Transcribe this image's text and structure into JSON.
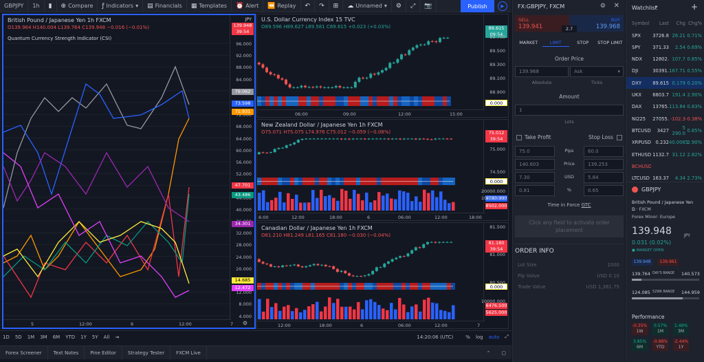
{
  "toolbar": {
    "symbol": "GBPJPY",
    "interval": "1h",
    "compare": "Compare",
    "indicators": "Indicators",
    "financials": "Financials",
    "templates": "Templates",
    "alert": "Alert",
    "replay": "Replay",
    "layout": "Unnamed",
    "publish": "Publish"
  },
  "left_chart": {
    "title": "British Pound / Japanese Yen  1h  FXCM",
    "ohlc": "O139.964 H140.004 L139.764 C139.948 −0.016 (−0.01%)",
    "currency": "JPY",
    "price_tag": "139.948",
    "time_tag": "39:54",
    "indicator": "Quantum Currency Strength Indicator (CSI)",
    "y_labels": [
      "96.000",
      "92.000",
      "88.000",
      "84.000",
      "80.000",
      "76.000",
      "72.000",
      "68.000",
      "64.000",
      "60.000",
      "56.000",
      "52.000",
      "48.000",
      "44.000",
      "40.000",
      "36.000",
      "32.000",
      "28.000",
      "24.000",
      "20.000",
      "16.000",
      "12.000",
      "8.000",
      "4.000"
    ],
    "tags": [
      {
        "text": "79.062",
        "color": "#9598a1"
      },
      {
        "text": "73.598",
        "color": "#2962ff"
      },
      {
        "text": "71.931",
        "color": "#ff9800"
      },
      {
        "text": "47.701",
        "color": "#f23645"
      },
      {
        "text": "43.486",
        "color": "#089981"
      },
      {
        "text": "34.301",
        "color": "#9c27b0"
      },
      {
        "text": "14.685",
        "color": "#ffeb3b"
      },
      {
        "text": "12.472",
        "color": "#e040fb"
      }
    ],
    "x_labels": [
      "5",
      "12:00",
      "6",
      "12:00",
      "7"
    ]
  },
  "dxy_chart": {
    "title": "U.S. Dollar Currency Index  15  TVC",
    "ohlc": "O89.596 H89.627 L89.581 C89.615 +0.023 (+0.03%)",
    "price_tag": "89.615",
    "time_tag": "09:54",
    "y_labels": [
      "89.700",
      "89.500",
      "89.300",
      "89.100",
      "88.900"
    ],
    "osc_tag": "0.000",
    "x_labels": [
      "06:00",
      "09:00",
      "12:00",
      "15:00"
    ]
  },
  "nzd_chart": {
    "title": "New Zealand Dollar / Japanese Yen  1h  FXCM",
    "ohlc": "O75.071 H75.075 L74.976 C75.012 −0.059 (−0.08%)",
    "price_tag": "75.012",
    "time_tag": "39:54",
    "y_labels": [
      "75.000",
      "74.500"
    ],
    "osc_tag": "0.000",
    "vol_labels": [
      "20000.000",
      "10000.000"
    ],
    "vol_tags": [
      {
        "text": "9783.000",
        "color": "#2962ff"
      },
      {
        "text": "8502.000",
        "color": "#f23645"
      }
    ],
    "x_labels": [
      "6:00",
      "12:00",
      "18:00",
      "6",
      "06:00",
      "12:00",
      "18:00"
    ]
  },
  "cad_chart": {
    "title": "Canadian Dollar / Japanese Yen  1h  FXCM",
    "ohlc": "O81.210 H81.249 L81.165 C81.180 −0.030 (−0.04%)",
    "price_tag": "81.180",
    "time_tag": "39:54",
    "y_labels": [
      "81.500",
      "81.000",
      "80.500"
    ],
    "osc_tag": "0.000",
    "vol_labels": [
      "10000.000"
    ],
    "vol_tags": [
      {
        "text": "6476.500",
        "color": "#f23645"
      },
      {
        "text": "5625.000",
        "color": "#f23645"
      }
    ],
    "x_labels": [
      "12:00",
      "18:00",
      "6",
      "06:00",
      "12:00",
      "7"
    ]
  },
  "bottom": {
    "timeframes": [
      "1D",
      "5D",
      "1M",
      "3M",
      "6M",
      "YTD",
      "1Y",
      "5Y",
      "All"
    ],
    "clock": "14:20:06 (UTC)",
    "percent": "%",
    "log": "log",
    "auto": "auto",
    "tabs": [
      "Forex Screener",
      "Text Notes",
      "Pine Editor",
      "Strategy Tester",
      "FXCM Live"
    ]
  },
  "order": {
    "symbol": "FX:GBPJPY, FXCM",
    "sell_label": "SELL",
    "sell_price": "139.941",
    "spread": "2.7",
    "buy_label": "BUY",
    "buy_price": "139.968",
    "tabs": [
      "MARKET",
      "LIMIT",
      "STOP",
      "STOP LIMIT"
    ],
    "order_price_label": "Order Price",
    "price_value": "139.968",
    "ask_placeholder": "Ask",
    "absolute": "Absolute",
    "ticks": "Ticks",
    "amount_label": "Amount",
    "amount_value": "1",
    "lots": "Lots",
    "take_profit": "Take Profit",
    "stop_loss": "Stop Loss",
    "tp_values": [
      "75.0",
      "140.603",
      "7.30",
      "0.81"
    ],
    "row_labels": [
      "Pips",
      "Price",
      "USD",
      "%"
    ],
    "sl_values": [
      "60.0",
      "139.253",
      "5.84",
      "0.65"
    ],
    "tif_label": "Time in Force",
    "tif_value": "GTC",
    "activate": "Click any field to activate order placement",
    "info_title": "ORDER INFO",
    "info_rows": [
      {
        "k": "Lot Size",
        "v": "1000"
      },
      {
        "k": "Pip Value",
        "v": "USD 0.10"
      },
      {
        "k": "Trade Value",
        "v": "USD 1,361.75"
      }
    ]
  },
  "watchlist": {
    "title": "Watchlist",
    "headers": [
      "Symbol",
      "Last",
      "Chg",
      "Chg%"
    ],
    "rows": [
      {
        "s": "SPX",
        "l": "3726.8",
        "c": "26.21",
        "p": "0.71%",
        "dir": "pos"
      },
      {
        "s": "SPY",
        "l": "371.33",
        "c": "2.54",
        "p": "0.69%",
        "dir": "pos"
      },
      {
        "s": "NDX",
        "l": "12802.",
        "c": "107.7",
        "p": "0.85%",
        "dir": "pos"
      },
      {
        "s": "DJI",
        "l": "30391.",
        "c": "167.71",
        "p": "0.55%",
        "dir": "pos"
      },
      {
        "s": "DXY",
        "l": "89.615",
        "c": "0.179",
        "p": "0.20%",
        "dir": "pos"
      },
      {
        "s": "UKX",
        "l": "6803.7",
        "c": "191.4",
        "p": "2.90%",
        "dir": "pos"
      },
      {
        "s": "DAX",
        "l": "13765.",
        "c": "113.84",
        "p": "0.83%",
        "dir": "pos"
      },
      {
        "s": "NI225",
        "l": "27055.",
        "c": "-102.3",
        "p": "-0.38%",
        "dir": "neg"
      },
      {
        "s": "BTCUSD",
        "l": "3427",
        "c": "5 290.0",
        "p": "0.85%",
        "dir": "pos"
      },
      {
        "s": "XRPUSD",
        "l": "0.232",
        "c": "40.0065",
        "p": "2.90%",
        "dir": "pos"
      },
      {
        "s": "ETHUSD",
        "l": "1132.7",
        "c": "31.12",
        "p": "2.82%",
        "dir": "pos"
      },
      {
        "s": "BCHUSD",
        "l": "",
        "c": "",
        "p": "",
        "dir": "neg"
      },
      {
        "s": "LTCUSD",
        "l": "163.37",
        "c": "4.34",
        "p": "2.73%",
        "dir": "pos"
      }
    ],
    "detail_symbol": "GBPJPY",
    "detail_name": "British Pound / Japanese Yen",
    "detail_exchange": "· FXCM",
    "detail_category": "Forex Minor: Europe",
    "detail_price": "139.948",
    "detail_currency": "JPY",
    "detail_change": "0.031 (0.02%)",
    "market_status": "MARKET OPEN",
    "bid": "139.948",
    "ask": "139.961",
    "day_low": "139.764",
    "day_range_label": "DAY'S RANGE",
    "day_high": "140.573",
    "wk_low": "124.085",
    "wk_range_label": "52WK RANGE",
    "wk_high": "144.959",
    "perf_title": "Performance",
    "perf": [
      {
        "v": "-0.35%",
        "k": "1W",
        "dir": "neg"
      },
      {
        "v": "0.57%",
        "k": "1M",
        "dir": "pos"
      },
      {
        "v": "1.49%",
        "k": "3M",
        "dir": "pos"
      },
      {
        "v": "3.85%",
        "k": "6M",
        "dir": "pos"
      },
      {
        "v": "-0.88%",
        "k": "YTD",
        "dir": "neg"
      },
      {
        "v": "-2.44%",
        "k": "1Y",
        "dir": "neg"
      }
    ]
  },
  "colors": {
    "bull": "#26a69a",
    "bear": "#ef5350",
    "accent": "#2962ff",
    "bg": "#131722",
    "panel": "#1e222d"
  }
}
